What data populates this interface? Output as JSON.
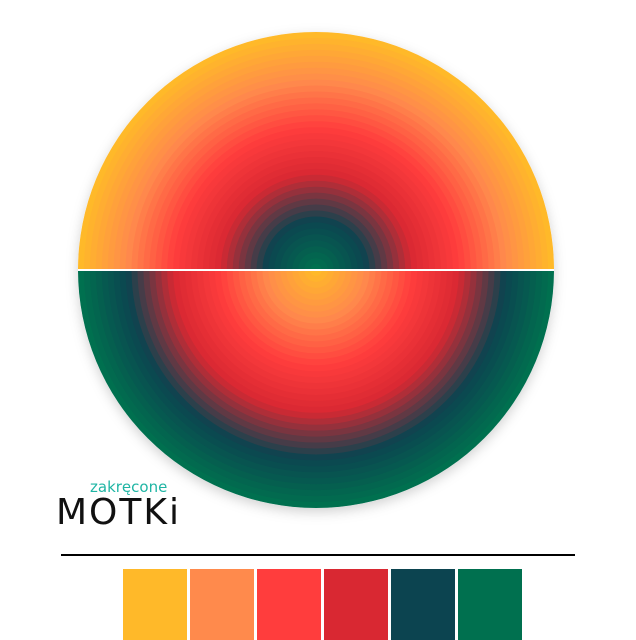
{
  "logo": {
    "subtitle": "zakręcone",
    "title": "MOTKi"
  },
  "palette": [
    "#FFB929",
    "#FF8A4C",
    "#FF3D3D",
    "#D92832",
    "#0C4450",
    "#00704F"
  ]
}
